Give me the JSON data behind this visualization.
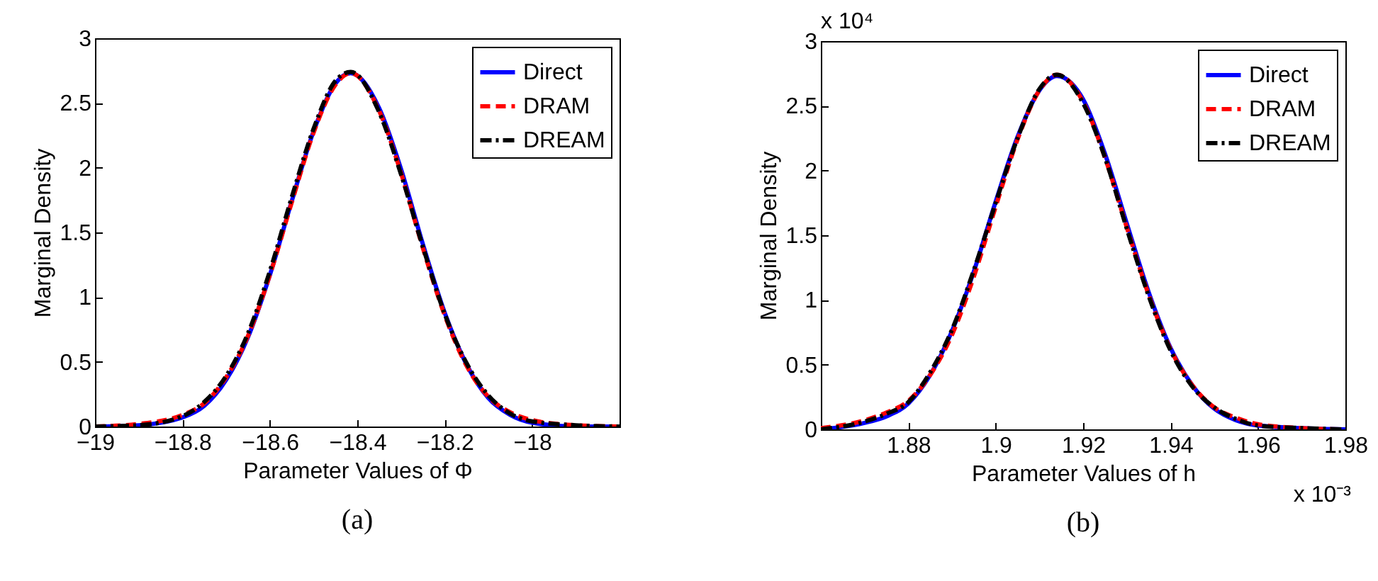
{
  "chart_data": [
    {
      "type": "line",
      "xlabel": "Parameter Values of Φ",
      "ylabel": "Marginal Density",
      "annotations": [
        "(a)"
      ],
      "xlim": [
        -19,
        -17.8
      ],
      "xticks": [
        -19,
        -18.8,
        -18.6,
        -18.4,
        -18.2,
        -18
      ],
      "ylim": [
        0,
        3
      ],
      "yticks": [
        0,
        0.5,
        1,
        1.5,
        2,
        2.5,
        3
      ],
      "grid": false,
      "legend": "top right",
      "marker": "none",
      "x": [
        -19,
        -18.9,
        -18.8,
        -18.75,
        -18.7,
        -18.65,
        -18.6,
        -18.55,
        -18.5,
        -18.45,
        -18.415,
        -18.35,
        -18.3,
        -18.25,
        -18.2,
        -18.15,
        -18.1,
        -18.05,
        -18,
        -17.9,
        -17.8
      ],
      "series": [
        {
          "name": "Direct",
          "color": "#0000ff",
          "line_style": "solid",
          "values": [
            0,
            0.01,
            0.07,
            0.16,
            0.36,
            0.69,
            1.17,
            1.74,
            2.28,
            2.65,
            2.73,
            2.46,
            1.99,
            1.41,
            0.88,
            0.48,
            0.22,
            0.09,
            0.03,
            0,
            0
          ]
        },
        {
          "name": "DRAM",
          "color": "#ff0000",
          "line_style": "dashed",
          "values": [
            0,
            0.02,
            0.09,
            0.18,
            0.38,
            0.7,
            1.17,
            1.73,
            2.27,
            2.64,
            2.73,
            2.44,
            1.96,
            1.38,
            0.86,
            0.47,
            0.23,
            0.11,
            0.05,
            0.01,
            0
          ]
        },
        {
          "name": "DREAM",
          "color": "#000000",
          "line_style": "dashdot",
          "values": [
            0,
            0.01,
            0.08,
            0.19,
            0.39,
            0.72,
            1.2,
            1.77,
            2.3,
            2.67,
            2.74,
            2.43,
            1.95,
            1.39,
            0.87,
            0.49,
            0.24,
            0.1,
            0.04,
            0.01,
            0
          ]
        }
      ]
    },
    {
      "type": "line",
      "xlabel": "Parameter Values of h",
      "ylabel": "Marginal Density",
      "annotations": [
        "x 10⁴",
        "x 10⁻³",
        "(b)"
      ],
      "xlim": [
        1.86,
        1.98
      ],
      "xticks": [
        1.88,
        1.9,
        1.92,
        1.94,
        1.96,
        1.98
      ],
      "ylim": [
        0,
        3
      ],
      "yticks": [
        0,
        0.5,
        1,
        1.5,
        2,
        2.5,
        3
      ],
      "grid": false,
      "legend": "top right",
      "marker": "none",
      "x": [
        1.86,
        1.87,
        1.875,
        1.88,
        1.885,
        1.89,
        1.895,
        1.9,
        1.905,
        1.91,
        1.914,
        1.92,
        1.925,
        1.93,
        1.935,
        1.94,
        1.945,
        1.95,
        1.955,
        1.96,
        1.97,
        1.98
      ],
      "series": [
        {
          "name": "Direct",
          "color": "#0000ff",
          "line_style": "solid",
          "values": [
            0,
            0.05,
            0.1,
            0.2,
            0.42,
            0.76,
            1.22,
            1.76,
            2.26,
            2.62,
            2.73,
            2.55,
            2.13,
            1.59,
            1.06,
            0.63,
            0.34,
            0.16,
            0.07,
            0.03,
            0.01,
            0
          ]
        },
        {
          "name": "DRAM",
          "color": "#ff0000",
          "line_style": "dashed",
          "values": [
            0.01,
            0.07,
            0.13,
            0.22,
            0.42,
            0.73,
            1.18,
            1.72,
            2.24,
            2.62,
            2.74,
            2.53,
            2.1,
            1.56,
            1.04,
            0.62,
            0.34,
            0.17,
            0.09,
            0.04,
            0.01,
            0
          ]
        },
        {
          "name": "DREAM",
          "color": "#000000",
          "line_style": "dashdot",
          "values": [
            0,
            0.06,
            0.12,
            0.21,
            0.44,
            0.77,
            1.23,
            1.75,
            2.25,
            2.63,
            2.74,
            2.52,
            2.1,
            1.55,
            1.03,
            0.61,
            0.33,
            0.17,
            0.08,
            0.03,
            0.01,
            0
          ]
        }
      ]
    }
  ]
}
